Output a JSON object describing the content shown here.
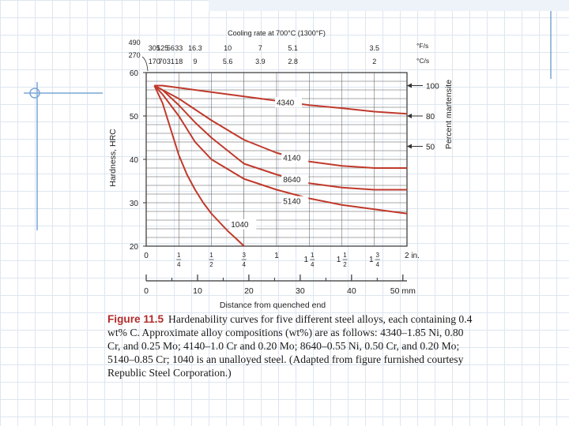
{
  "chart_data": {
    "type": "line",
    "xlabel": "Distance from quenched end",
    "ylabel": "Hardness, HRC",
    "y2label": "Percent martensite",
    "xlim": [
      0,
      2
    ],
    "ylim": [
      20,
      60
    ],
    "x_ticks": [
      {
        "v": 0,
        "label": "0"
      },
      {
        "v": 0.25,
        "num": "1",
        "den": "4"
      },
      {
        "v": 0.5,
        "num": "1",
        "den": "2"
      },
      {
        "v": 0.75,
        "num": "3",
        "den": "4"
      },
      {
        "v": 1,
        "label": "1"
      },
      {
        "v": 1.25,
        "whole": "1",
        "num": "1",
        "den": "4"
      },
      {
        "v": 1.5,
        "whole": "1",
        "num": "1",
        "den": "2"
      },
      {
        "v": 1.75,
        "whole": "1",
        "num": "3",
        "den": "4"
      },
      {
        "v": 2,
        "label": "2 in."
      }
    ],
    "y_ticks": [
      20,
      30,
      40,
      50,
      60
    ],
    "mm_axis": {
      "ticks": [
        {
          "mm": 0,
          "label": "0"
        },
        {
          "mm": 10,
          "label": "10"
        },
        {
          "mm": 20,
          "label": "20"
        },
        {
          "mm": 30,
          "label": "30"
        },
        {
          "mm": 40,
          "label": "40"
        },
        {
          "mm": 50,
          "label": "50 mm"
        }
      ]
    },
    "martensite": [
      {
        "label": "100",
        "hrc": 57
      },
      {
        "label": "80",
        "hrc": 50
      },
      {
        "label": "50",
        "hrc": 43
      }
    ],
    "cooling_rate": {
      "title": "Cooling rate at 700°C (1300°F)",
      "unit_f": "°F/s",
      "unit_c": "°C/s",
      "row_f": [
        {
          "x": -0.09,
          "label": "490"
        },
        {
          "x": 0.0625,
          "label": "305"
        },
        {
          "x": 0.125,
          "label": "125"
        },
        {
          "x": 0.1875,
          "label": "56"
        },
        {
          "x": 0.25,
          "label": "33"
        },
        {
          "x": 0.375,
          "label": "16.3"
        },
        {
          "x": 0.625,
          "label": "10"
        },
        {
          "x": 0.875,
          "label": "7"
        },
        {
          "x": 1.125,
          "label": "5.1"
        },
        {
          "x": 1.75,
          "label": "3.5"
        }
      ],
      "row_c": [
        {
          "x": -0.09,
          "label": "270"
        },
        {
          "x": 0.0625,
          "label": "170"
        },
        {
          "x": 0.125,
          "label": "70"
        },
        {
          "x": 0.1875,
          "label": "31"
        },
        {
          "x": 0.25,
          "label": "18"
        },
        {
          "x": 0.375,
          "label": "9"
        },
        {
          "x": 0.625,
          "label": "5.6"
        },
        {
          "x": 0.875,
          "label": "3.9"
        },
        {
          "x": 1.125,
          "label": "2.8"
        },
        {
          "x": 1.75,
          "label": "2"
        }
      ]
    },
    "series": [
      {
        "name": "4340",
        "label_at": [
          1.0,
          52.5
        ],
        "x": [
          0.0625,
          0.125,
          0.25,
          0.375,
          0.5,
          0.75,
          1.0,
          1.25,
          1.5,
          1.75,
          2.0
        ],
        "y": [
          57,
          57,
          56.5,
          56,
          55.5,
          54.5,
          53.5,
          52.5,
          51.8,
          51,
          50.5
        ]
      },
      {
        "name": "4140",
        "label_at": [
          1.05,
          39.7
        ],
        "x": [
          0.0625,
          0.125,
          0.25,
          0.375,
          0.5,
          0.75,
          1.0,
          1.25,
          1.5,
          1.75,
          2.0
        ],
        "y": [
          57,
          56,
          54,
          51.5,
          49,
          44.5,
          41.5,
          39.5,
          38.5,
          38,
          38
        ]
      },
      {
        "name": "8640",
        "label_at": [
          1.05,
          34.7
        ],
        "x": [
          0.0625,
          0.125,
          0.25,
          0.375,
          0.5,
          0.75,
          1.0,
          1.25,
          1.5,
          1.75,
          2.0
        ],
        "y": [
          57,
          56,
          52.5,
          48.5,
          45,
          39,
          36.5,
          34.5,
          33.5,
          33,
          33
        ]
      },
      {
        "name": "5140",
        "label_at": [
          1.05,
          29.7
        ],
        "x": [
          0.0625,
          0.125,
          0.25,
          0.375,
          0.5,
          0.75,
          1.0,
          1.25,
          1.5,
          1.75,
          2.0
        ],
        "y": [
          57,
          55,
          50,
          44,
          40,
          35.5,
          33,
          31,
          29.5,
          28.5,
          27.5
        ]
      },
      {
        "name": "1040",
        "label_at": [
          0.65,
          24.4
        ],
        "x": [
          0.0625,
          0.125,
          0.1875,
          0.25,
          0.3125,
          0.375,
          0.4375,
          0.5,
          0.5625,
          0.625,
          0.6875,
          0.75
        ],
        "y": [
          57,
          53,
          47,
          41,
          36.5,
          33,
          30,
          27.5,
          25.5,
          23.5,
          21.8,
          20
        ]
      }
    ]
  },
  "caption": {
    "figure_label": "Figure 11.5",
    "text": "Hardenability curves for five different steel alloys, each containing 0.4 wt% C. Approximate alloy compositions (wt%) are as follows: 4340–1.85 Ni, 0.80 Cr, and 0.25 Mo; 4140–1.0 Cr and 0.20 Mo; 8640–0.55 Ni, 0.50 Cr, and 0.20 Mo; 5140–0.85 Cr; 1040 is an unalloyed steel. (Adapted from figure furnished courtesy Republic Steel Corporation.)"
  },
  "colors": {
    "curve": "#c0392b",
    "axis": "#333333",
    "caption_label": "#b22a2a"
  }
}
